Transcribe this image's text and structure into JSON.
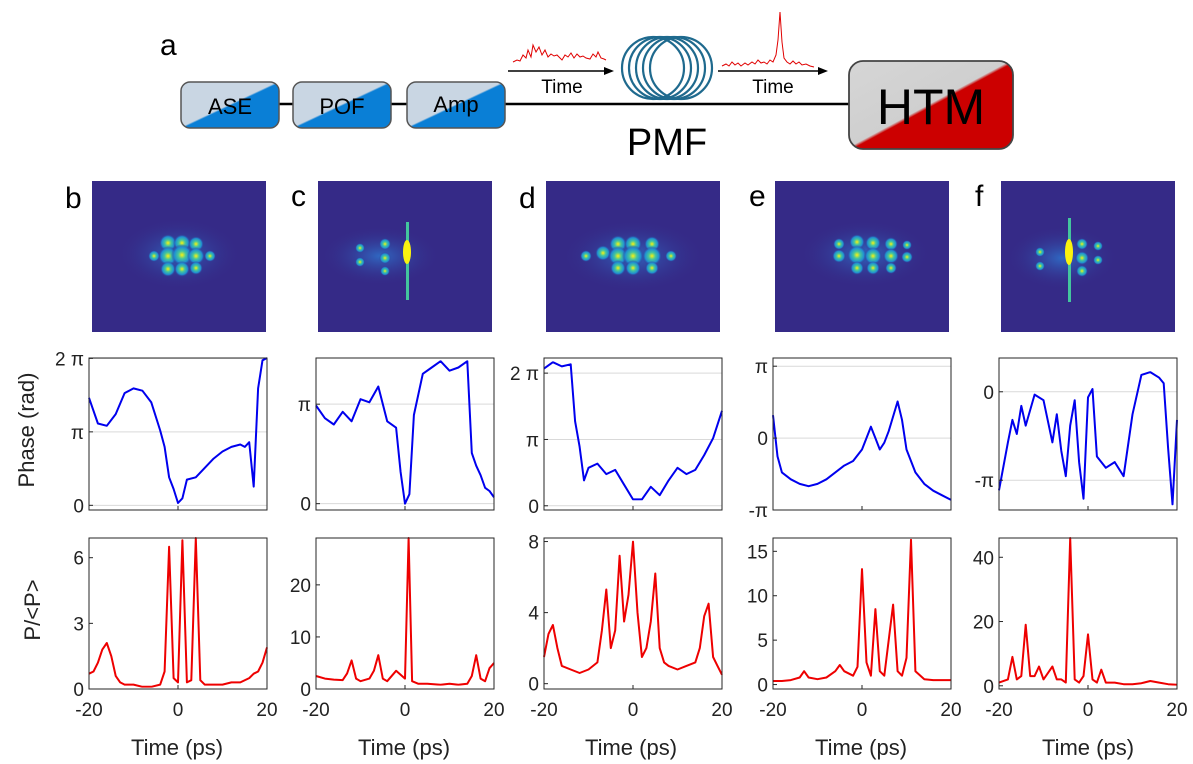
{
  "figure": {
    "panel_labels": [
      "a",
      "b",
      "c",
      "d",
      "e",
      "f"
    ],
    "setup": {
      "components": [
        "ASE",
        "POF",
        "Amp"
      ],
      "fiber_label": "PMF",
      "detector_label": "HTM",
      "inset_axis_label": "Time",
      "colors": {
        "block_blue": "#0a7fd6",
        "block_grey": "#c9d6e3",
        "detector_red": "#cc0000",
        "fiber": "#1f6a8e",
        "trace": "#e00000"
      }
    },
    "axis_labels": {
      "phase_ylabel": "Phase (rad)",
      "power_ylabel": "P/<P>",
      "xlabel": "Time (ps)"
    },
    "colors": {
      "phase_line": "#0000ee",
      "power_line": "#ee0000",
      "image_background": "#352a87"
    }
  },
  "chart_data": [
    {
      "panel": "b",
      "phase": {
        "type": "line",
        "xlim": [
          -20,
          20
        ],
        "ylim": [
          -0.2,
          6.3
        ],
        "yticks": [
          0,
          3.1416,
          6.2832
        ],
        "ytick_labels": [
          "0",
          "π",
          "2 π"
        ],
        "x": [
          -20,
          -18,
          -16,
          -14,
          -12,
          -10,
          -8,
          -6,
          -4,
          -3,
          -2,
          -1,
          0,
          1,
          2,
          4,
          6,
          8,
          10,
          12,
          14,
          15,
          16,
          17,
          18,
          19,
          20
        ],
        "y": [
          4.6,
          3.5,
          3.4,
          3.9,
          4.8,
          5.0,
          4.9,
          4.4,
          3.2,
          2.5,
          1.2,
          0.7,
          0.1,
          0.3,
          1.1,
          1.2,
          1.6,
          2.0,
          2.3,
          2.5,
          2.6,
          2.5,
          2.7,
          0.8,
          5.0,
          6.2,
          6.3
        ]
      },
      "power": {
        "type": "line",
        "xlim": [
          -20,
          20
        ],
        "ylim": [
          0,
          6.9
        ],
        "yticks": [
          0,
          3,
          6
        ],
        "ytick_labels": [
          "0",
          "3",
          "6"
        ],
        "x": [
          -20,
          -19,
          -18,
          -17,
          -16,
          -15,
          -14,
          -13,
          -12,
          -10,
          -8,
          -6,
          -4,
          -3,
          -2,
          -1,
          0,
          1,
          2,
          3,
          4,
          5,
          6,
          8,
          10,
          12,
          14,
          16,
          17,
          18,
          19,
          20
        ],
        "y": [
          0.7,
          0.8,
          1.2,
          1.8,
          2.1,
          1.5,
          0.6,
          0.3,
          0.2,
          0.2,
          0.1,
          0.1,
          0.2,
          0.8,
          6.5,
          0.5,
          0.3,
          6.8,
          0.3,
          0.4,
          6.9,
          0.4,
          0.2,
          0.2,
          0.2,
          0.3,
          0.3,
          0.5,
          0.7,
          0.8,
          1.2,
          1.9
        ]
      }
    },
    {
      "panel": "c",
      "phase": {
        "type": "line",
        "xlim": [
          -20,
          20
        ],
        "ylim": [
          -0.2,
          4.6
        ],
        "yticks": [
          0,
          3.1416
        ],
        "ytick_labels": [
          "0",
          "π"
        ],
        "x": [
          -20,
          -18,
          -16,
          -14,
          -12,
          -10,
          -8,
          -6,
          -4,
          -2,
          -1,
          0,
          1,
          2,
          4,
          6,
          8,
          10,
          12,
          14,
          15,
          16,
          17,
          18,
          19,
          20
        ],
        "y": [
          3.1,
          2.7,
          2.5,
          2.9,
          2.6,
          3.3,
          3.2,
          3.7,
          2.6,
          2.4,
          1.0,
          0.0,
          0.3,
          2.8,
          4.1,
          4.3,
          4.5,
          4.2,
          4.3,
          4.5,
          1.6,
          1.2,
          0.9,
          0.5,
          0.4,
          0.2
        ]
      },
      "power": {
        "type": "line",
        "xlim": [
          -20,
          20
        ],
        "ylim": [
          0,
          29
        ],
        "yticks": [
          0,
          10,
          20
        ],
        "ytick_labels": [
          "0",
          "10",
          "20"
        ],
        "x": [
          -20,
          -18,
          -16,
          -14,
          -13,
          -12,
          -11,
          -10,
          -8,
          -7,
          -6,
          -5,
          -4,
          -2,
          0,
          0.8,
          1.6,
          3,
          5,
          8,
          10,
          12,
          14,
          15,
          16,
          17,
          18,
          19,
          20
        ],
        "y": [
          2.5,
          2.0,
          1.8,
          1.7,
          3.0,
          5.5,
          2.0,
          1.5,
          2.0,
          3.5,
          6.5,
          2.0,
          1.5,
          3.5,
          2.0,
          29,
          1.5,
          1.0,
          1.0,
          0.8,
          1.0,
          0.8,
          1.0,
          2.5,
          6.5,
          2.0,
          1.5,
          4.0,
          5.0
        ]
      }
    },
    {
      "panel": "d",
      "phase": {
        "type": "line",
        "xlim": [
          -20,
          20
        ],
        "ylim": [
          -0.2,
          7.0
        ],
        "yticks": [
          0,
          3.1416,
          6.2832
        ],
        "ytick_labels": [
          "0",
          "π",
          "2 π"
        ],
        "x": [
          -20,
          -18,
          -16,
          -14,
          -13,
          -12,
          -11,
          -10,
          -8,
          -6,
          -4,
          -2,
          0,
          2,
          4,
          6,
          8,
          10,
          12,
          14,
          16,
          18,
          20
        ],
        "y": [
          6.5,
          6.8,
          6.6,
          6.7,
          4.0,
          2.8,
          1.2,
          1.8,
          2.0,
          1.5,
          1.7,
          1.0,
          0.3,
          0.3,
          0.9,
          0.5,
          1.2,
          1.8,
          1.5,
          1.7,
          2.4,
          3.2,
          4.5
        ]
      },
      "power": {
        "type": "line",
        "xlim": [
          -20,
          20
        ],
        "ylim": [
          -0.3,
          8.2
        ],
        "yticks": [
          0,
          4,
          8
        ],
        "ytick_labels": [
          "0",
          "4",
          "8"
        ],
        "x": [
          -20,
          -19,
          -18,
          -17,
          -16,
          -14,
          -12,
          -10,
          -8,
          -7,
          -6,
          -5,
          -4,
          -3,
          -2,
          -1,
          0,
          1,
          2,
          3,
          4,
          5,
          6,
          7,
          8,
          10,
          12,
          14,
          15,
          16,
          17,
          18,
          19,
          20
        ],
        "y": [
          1.5,
          2.8,
          3.3,
          2.0,
          1.0,
          0.8,
          0.6,
          0.8,
          1.2,
          3.0,
          5.3,
          2.0,
          3.0,
          7.2,
          3.5,
          5.0,
          8.0,
          4.0,
          1.5,
          2.0,
          3.5,
          6.2,
          2.0,
          1.2,
          1.0,
          0.8,
          1.0,
          1.2,
          2.0,
          3.8,
          4.5,
          1.5,
          1.0,
          0.5
        ]
      }
    },
    {
      "panel": "e",
      "phase": {
        "type": "line",
        "xlim": [
          -20,
          20
        ],
        "ylim": [
          -3.1416,
          3.5
        ],
        "yticks": [
          -3.1416,
          0,
          3.1416
        ],
        "ytick_labels": [
          "-π",
          "0",
          "π"
        ],
        "x": [
          -20,
          -19,
          -18,
          -16,
          -14,
          -12,
          -10,
          -8,
          -6,
          -4,
          -2,
          0,
          2,
          3,
          4,
          5,
          6,
          8,
          9,
          10,
          12,
          14,
          16,
          18,
          20
        ],
        "y": [
          1.0,
          -0.8,
          -1.5,
          -1.8,
          -2.0,
          -2.1,
          -2.0,
          -1.8,
          -1.5,
          -1.2,
          -1.0,
          -0.5,
          0.5,
          0.0,
          -0.5,
          -0.2,
          0.3,
          1.6,
          0.8,
          -0.5,
          -1.5,
          -2.0,
          -2.3,
          -2.5,
          -2.7
        ]
      },
      "power": {
        "type": "line",
        "xlim": [
          -20,
          20
        ],
        "ylim": [
          -0.5,
          16.5
        ],
        "yticks": [
          0,
          5,
          10,
          15
        ],
        "ytick_labels": [
          "0",
          "5",
          "10",
          "15"
        ],
        "x": [
          -20,
          -18,
          -16,
          -14,
          -13,
          -12,
          -10,
          -8,
          -6,
          -5,
          -4,
          -2,
          -1,
          0,
          1,
          2,
          3,
          4,
          5,
          6,
          7,
          8,
          9,
          10,
          11,
          12,
          14,
          16,
          18,
          20
        ],
        "y": [
          0.4,
          0.4,
          0.5,
          0.8,
          1.5,
          0.8,
          0.6,
          0.8,
          1.5,
          2.2,
          1.5,
          1.0,
          2.0,
          13.0,
          2.5,
          1.0,
          8.5,
          1.5,
          1.0,
          5.0,
          9.0,
          1.5,
          1.0,
          3.0,
          16.3,
          1.5,
          0.6,
          0.5,
          0.5,
          0.5
        ]
      }
    },
    {
      "panel": "f",
      "phase": {
        "type": "line",
        "xlim": [
          -20,
          20
        ],
        "ylim": [
          -4.2,
          1.2
        ],
        "yticks": [
          -3.1416,
          0
        ],
        "ytick_labels": [
          "-π",
          "0"
        ],
        "x": [
          -20,
          -18,
          -17,
          -16,
          -15,
          -14,
          -12,
          -10,
          -8,
          -7,
          -6,
          -5,
          -4,
          -3,
          -2,
          -1,
          0,
          1,
          2,
          4,
          6,
          8,
          10,
          12,
          14,
          16,
          17,
          18,
          19,
          20
        ],
        "y": [
          -3.5,
          -1.8,
          -1.0,
          -1.5,
          -0.5,
          -1.2,
          -0.1,
          -0.3,
          -1.8,
          -0.8,
          -2.1,
          -3.0,
          -1.2,
          -0.3,
          -2.5,
          -3.8,
          -0.2,
          0.1,
          -2.3,
          -2.7,
          -2.5,
          -3.0,
          -0.8,
          0.6,
          0.7,
          0.5,
          0.3,
          -2.0,
          -4.0,
          -1.0
        ]
      },
      "power": {
        "type": "line",
        "xlim": [
          -20,
          20
        ],
        "ylim": [
          -1,
          46
        ],
        "yticks": [
          0,
          20,
          40
        ],
        "ytick_labels": [
          "0",
          "20",
          "40"
        ],
        "x": [
          -20,
          -18,
          -17,
          -16,
          -15,
          -14,
          -13,
          -12,
          -11,
          -10,
          -9,
          -8,
          -7,
          -6,
          -5,
          -4,
          -3,
          -2,
          -1,
          0,
          1,
          2,
          3,
          4,
          5,
          6,
          8,
          10,
          12,
          14,
          16,
          18,
          20
        ],
        "y": [
          1.0,
          2.0,
          9.0,
          2.0,
          3.0,
          19.0,
          3.0,
          3.0,
          6.0,
          2.0,
          4.0,
          6.0,
          2.0,
          2.0,
          1.0,
          46.0,
          2.0,
          1.0,
          3.0,
          16.0,
          2.0,
          1.0,
          5.0,
          1.0,
          1.0,
          1.0,
          0.5,
          0.5,
          0.8,
          1.5,
          1.0,
          0.5,
          0.3
        ]
      }
    }
  ]
}
